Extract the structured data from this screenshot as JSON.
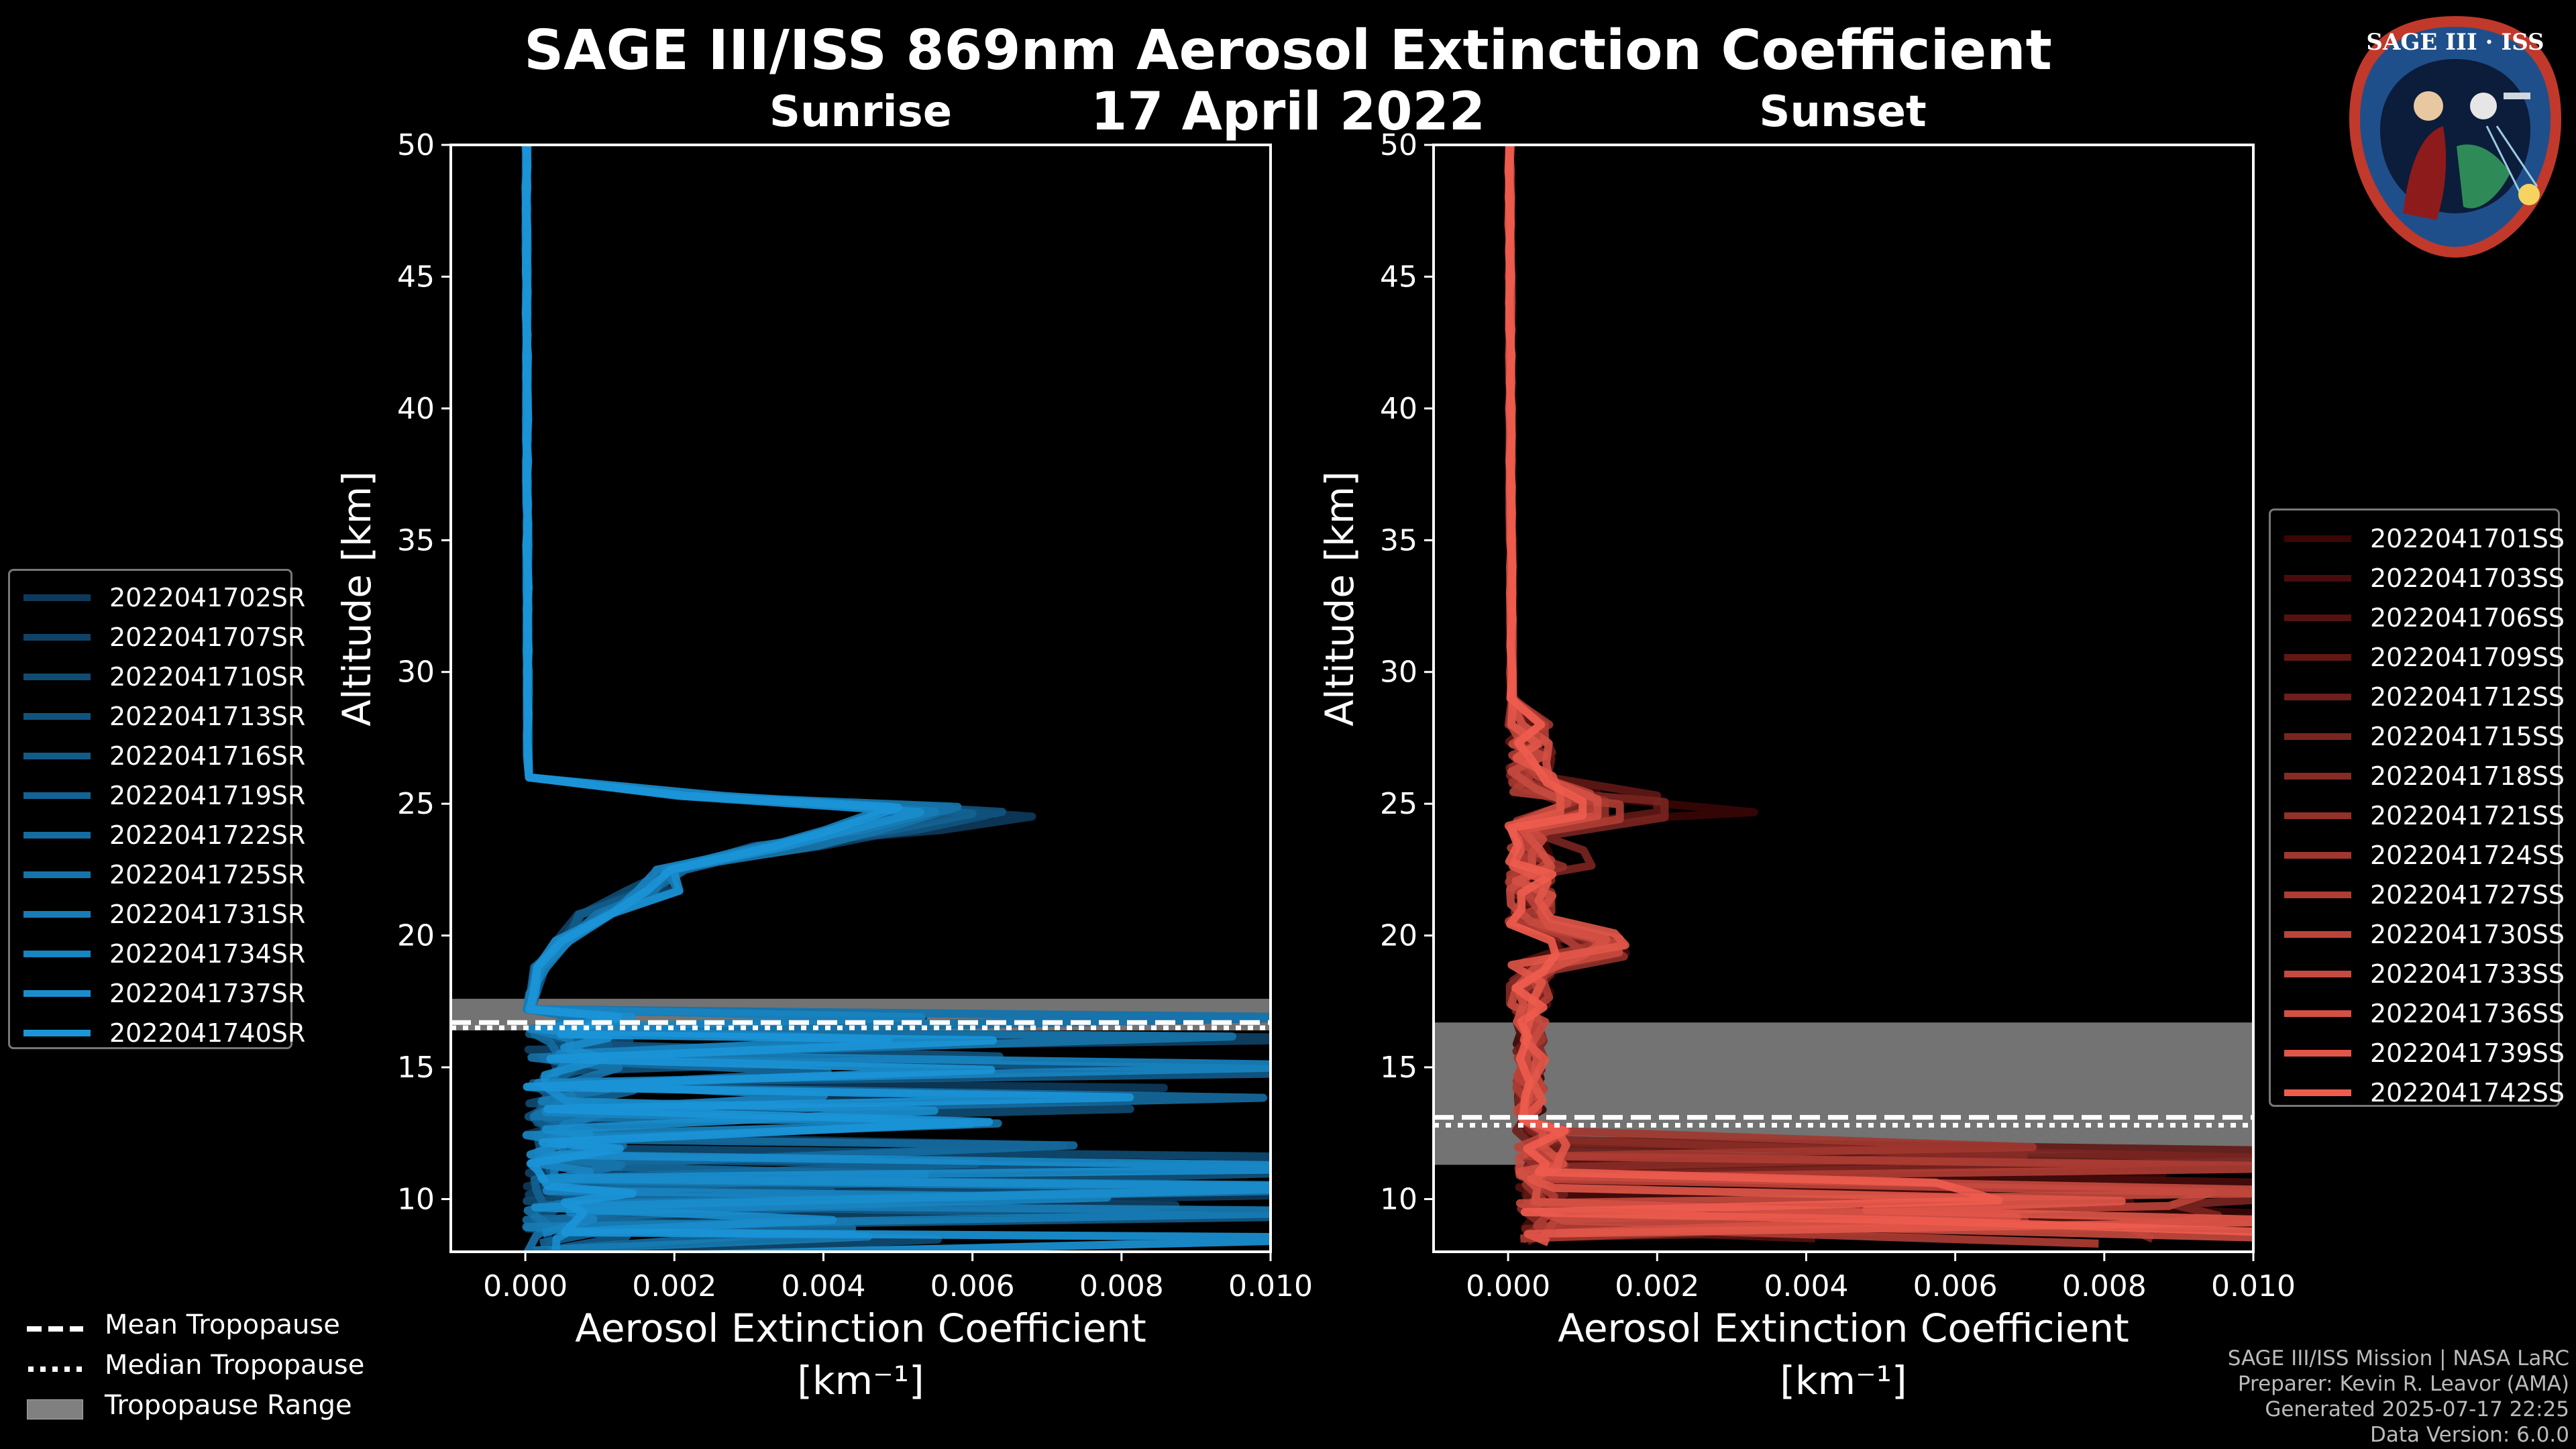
{
  "title": "SAGE III/ISS 869nm Aerosol Extinction Coefficient",
  "date": "17 April 2022",
  "logo_text": "SAGE III · ISS",
  "colors": {
    "background": "#000000",
    "sunrise": "#1f8fd0",
    "sunset": "#e8564a",
    "tropopause_range": "#808080"
  },
  "chart_data": [
    {
      "type": "line",
      "subtitle": "Sunrise",
      "xlabel": "Aerosol Extinction Coefficient",
      "xunit": "[km⁻¹]",
      "ylabel": "Altitude [km]",
      "xlim": [
        -0.001,
        0.01
      ],
      "ylim": [
        8,
        50
      ],
      "xticks": [
        "0.000",
        "0.002",
        "0.004",
        "0.006",
        "0.008",
        "0.010"
      ],
      "xtick_values": [
        0,
        0.002,
        0.004,
        0.006,
        0.008,
        0.01
      ],
      "yticks": [
        10,
        15,
        20,
        25,
        30,
        35,
        40,
        45,
        50
      ],
      "tropopause": {
        "mean": 16.7,
        "median": 16.5,
        "range": [
          16.4,
          17.6
        ]
      },
      "series": [
        {
          "name": "2022041702SR",
          "peak": 0.0068
        },
        {
          "name": "2022041707SR",
          "peak": 0.0062
        },
        {
          "name": "2022041710SR",
          "peak": 0.0057
        },
        {
          "name": "2022041713SR",
          "peak": 0.0064
        },
        {
          "name": "2022041716SR",
          "peak": 0.0054
        },
        {
          "name": "2022041719SR",
          "peak": 0.006
        },
        {
          "name": "2022041722SR",
          "peak": 0.0052
        },
        {
          "name": "2022041725SR",
          "peak": 0.0058
        },
        {
          "name": "2022041731SR",
          "peak": 0.0055
        },
        {
          "name": "2022041734SR",
          "peak": 0.0049
        },
        {
          "name": "2022041737SR",
          "peak": 0.0053
        },
        {
          "name": "2022041740SR",
          "peak": 0.005
        }
      ]
    },
    {
      "type": "line",
      "subtitle": "Sunset",
      "xlabel": "Aerosol Extinction Coefficient",
      "xunit": "[km⁻¹]",
      "ylabel": "Altitude [km]",
      "xlim": [
        -0.001,
        0.01
      ],
      "ylim": [
        8,
        50
      ],
      "xticks": [
        "0.000",
        "0.002",
        "0.004",
        "0.006",
        "0.008",
        "0.010"
      ],
      "xtick_values": [
        0,
        0.002,
        0.004,
        0.006,
        0.008,
        0.01
      ],
      "yticks": [
        10,
        15,
        20,
        25,
        30,
        35,
        40,
        45,
        50
      ],
      "tropopause": {
        "mean": 13.1,
        "median": 12.8,
        "range": [
          11.3,
          16.7
        ]
      },
      "series": [
        {
          "name": "2022041701SS",
          "peak": 0.0033
        },
        {
          "name": "2022041703SS",
          "peak": 0.0012
        },
        {
          "name": "2022041706SS",
          "peak": 0.0008
        },
        {
          "name": "2022041709SS",
          "peak": 0.002
        },
        {
          "name": "2022041712SS",
          "peak": 0.0007
        },
        {
          "name": "2022041715SS",
          "peak": 0.0021
        },
        {
          "name": "2022041718SS",
          "peak": 0.001
        },
        {
          "name": "2022041721SS",
          "peak": 0.0013
        },
        {
          "name": "2022041724SS",
          "peak": 0.0009
        },
        {
          "name": "2022041727SS",
          "peak": 0.0015
        },
        {
          "name": "2022041730SS",
          "peak": 0.0011
        },
        {
          "name": "2022041733SS",
          "peak": 0.0008
        },
        {
          "name": "2022041736SS",
          "peak": 0.0012
        },
        {
          "name": "2022041739SS",
          "peak": 0.0007
        },
        {
          "name": "2022041742SS",
          "peak": 0.001
        }
      ]
    }
  ],
  "legend_bottom": [
    "Mean Tropopause",
    "Median Tropopause",
    "Tropopause Range"
  ],
  "footer": [
    "SAGE III/ISS Mission | NASA LaRC",
    "Preparer: Kevin R. Leavor (AMA)",
    "Generated 2025-07-17 22:25",
    "Data Version: 6.0.0"
  ]
}
